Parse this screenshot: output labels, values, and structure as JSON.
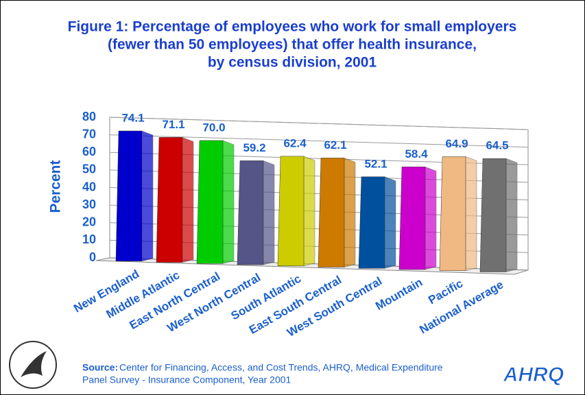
{
  "chart_data": {
    "type": "bar3d",
    "title": [
      "Figure 1: Percentage of employees who work for small employers",
      "(fewer than 50 employees) that offer health insurance,",
      "by census division, 2001"
    ],
    "y_label": "Percent",
    "categories": [
      "New England",
      "Middle Atlantic",
      "East North Central",
      "West North Central",
      "South Atlantic",
      "East South Central",
      "West South Central",
      "Mountain",
      "Pacific",
      "National Average"
    ],
    "values": [
      74.1,
      71.1,
      70.0,
      59.2,
      62.4,
      62.1,
      52.1,
      58.4,
      64.9,
      64.5
    ],
    "value_labels": [
      "74.1",
      "71.1",
      "70.0",
      "59.2",
      "62.4",
      "62.1",
      "52.1",
      "58.4",
      "64.9",
      "64.5"
    ],
    "colors": [
      "#0000cc",
      "#cc0000",
      "#00cc00",
      "#555588",
      "#cccc00",
      "#cc7a00",
      "#00509e",
      "#cc00cc",
      "#f0b882",
      "#707070"
    ],
    "ylim": [
      0,
      80
    ],
    "yticks": [
      0,
      10,
      20,
      30,
      40,
      50,
      60,
      70,
      80
    ],
    "grid": true,
    "source_label": "Source:",
    "source_text": [
      "Center for Financing, Access, and Cost Trends, AHRQ, Medical Expenditure",
      "Panel Survey - Insurance Component, Year 2001"
    ],
    "logo_text": "AHRQ"
  }
}
